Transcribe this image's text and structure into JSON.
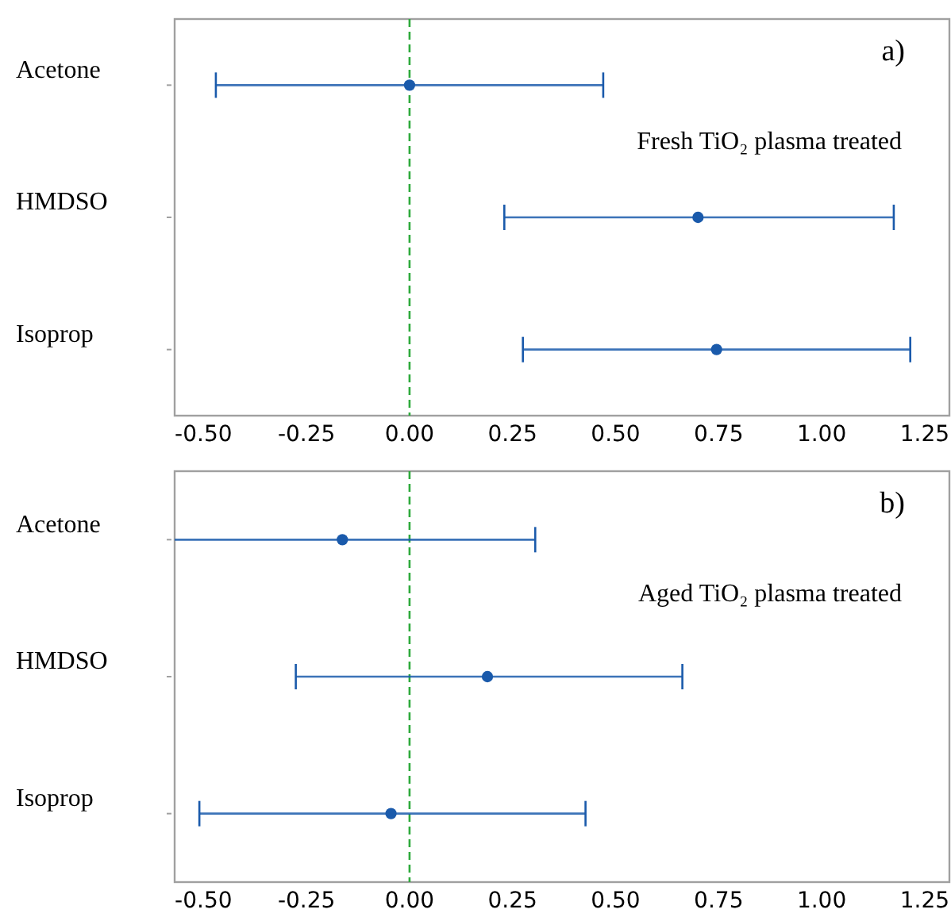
{
  "chart_data": [
    {
      "type": "scatter",
      "orientation": "horizontal",
      "categories": [
        "Acetone",
        "HMDSO",
        "Isoprop"
      ],
      "series": [
        {
          "color": "#1a5aab",
          "values": [
            0.0,
            0.7,
            0.745
          ],
          "errors": [
            [
              -0.47,
              0.47
            ],
            [
              0.23,
              1.175
            ],
            [
              0.275,
              1.215
            ]
          ]
        }
      ],
      "marker": "circle",
      "xlim": [
        -0.57,
        1.31
      ],
      "xticks": [
        {
          "value": -0.5,
          "label": "-0.50"
        },
        {
          "value": -0.25,
          "label": "-0.25"
        },
        {
          "value": 0,
          "label": "0.00"
        },
        {
          "value": 0.25,
          "label": "0.25"
        },
        {
          "value": 0.5,
          "label": "0.50"
        },
        {
          "value": 0.75,
          "label": "0.75"
        },
        {
          "value": 1,
          "label": "1.00"
        },
        {
          "value": 1.25,
          "label": "1.25"
        }
      ],
      "ref_lines": [
        {
          "axis": "x",
          "value": 0,
          "color": "#2eaa3c",
          "line_style": "dashed"
        }
      ],
      "annotations": [
        "a)",
        "Fresh TiO₂ plasma treated"
      ],
      "grid": false
    },
    {
      "type": "scatter",
      "orientation": "horizontal",
      "categories": [
        "Acetone",
        "HMDSO",
        "Isoprop"
      ],
      "series": [
        {
          "color": "#1a5aab",
          "values": [
            -0.163,
            0.189,
            -0.045
          ],
          "errors": [
            [
              -0.57,
              0.305
            ],
            [
              -0.276,
              0.662
            ],
            [
              -0.51,
              0.427
            ]
          ]
        }
      ],
      "marker": "circle",
      "xlim": [
        -0.57,
        1.31
      ],
      "xticks": [
        {
          "value": -0.5,
          "label": "-0.50"
        },
        {
          "value": -0.25,
          "label": "-0.25"
        },
        {
          "value": 0,
          "label": "0.00"
        },
        {
          "value": 0.25,
          "label": "0.25"
        },
        {
          "value": 0.5,
          "label": "0.50"
        },
        {
          "value": 0.75,
          "label": "0.75"
        },
        {
          "value": 1,
          "label": "1.00"
        },
        {
          "value": 1.25,
          "label": "1.25"
        }
      ],
      "ref_lines": [
        {
          "axis": "x",
          "value": 0,
          "color": "#2eaa3c",
          "line_style": "dashed"
        }
      ],
      "annotations": [
        "b)",
        "Aged TiO₂ plasma treated"
      ],
      "grid": false
    }
  ]
}
